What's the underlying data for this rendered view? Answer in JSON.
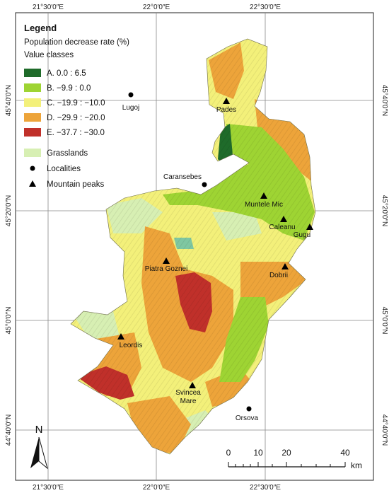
{
  "legend": {
    "title": "Legend",
    "subtitle": "Population decrease rate (%)",
    "classes_label": "Value classes",
    "classes": [
      {
        "label": "A. 0.0 : 6.5",
        "color": "#1f6b2a"
      },
      {
        "label": "B. −9.9 : 0.0",
        "color": "#9ed433"
      },
      {
        "label": "C. −19.9 : −10.0",
        "color": "#f3f07a"
      },
      {
        "label": "D. −29.9 : −20.0",
        "color": "#eda43a"
      },
      {
        "label": "E. −37.7 : −30.0",
        "color": "#c0302a"
      }
    ],
    "grasslands": {
      "label": "Grasslands",
      "color": "#d7efb3"
    },
    "localities": {
      "label": "Localities",
      "symbol": "circle-icon"
    },
    "peaks": {
      "label": "Mountain peaks",
      "symbol": "triangle-icon"
    }
  },
  "graticule": {
    "top": [
      "21°30′0″E",
      "22°0′0″E",
      "22°30′0″E"
    ],
    "bottom": [
      "21°30′0″E",
      "22°0′0″E",
      "22°30′0″E"
    ],
    "left": [
      "45°40′0″N",
      "45°20′0″N",
      "45°0′0″N",
      "44°40′0″N"
    ],
    "right": [
      "45°40′0″N",
      "45°20′0″N",
      "45°0′0″N",
      "44°40′0″N"
    ]
  },
  "localities": [
    "Lugoj",
    "Caransebes",
    "Orsova"
  ],
  "peaks": [
    "Pades",
    "Muntele Mic",
    "Caleanu",
    "Gugu",
    "Piatra Goznei",
    "Dobrii",
    "Leordis",
    "Svincea Mare"
  ],
  "scale_bar": {
    "ticks": [
      "0",
      "10",
      "20",
      "40"
    ],
    "unit": "km"
  },
  "north_arrow": {
    "label": "N"
  }
}
